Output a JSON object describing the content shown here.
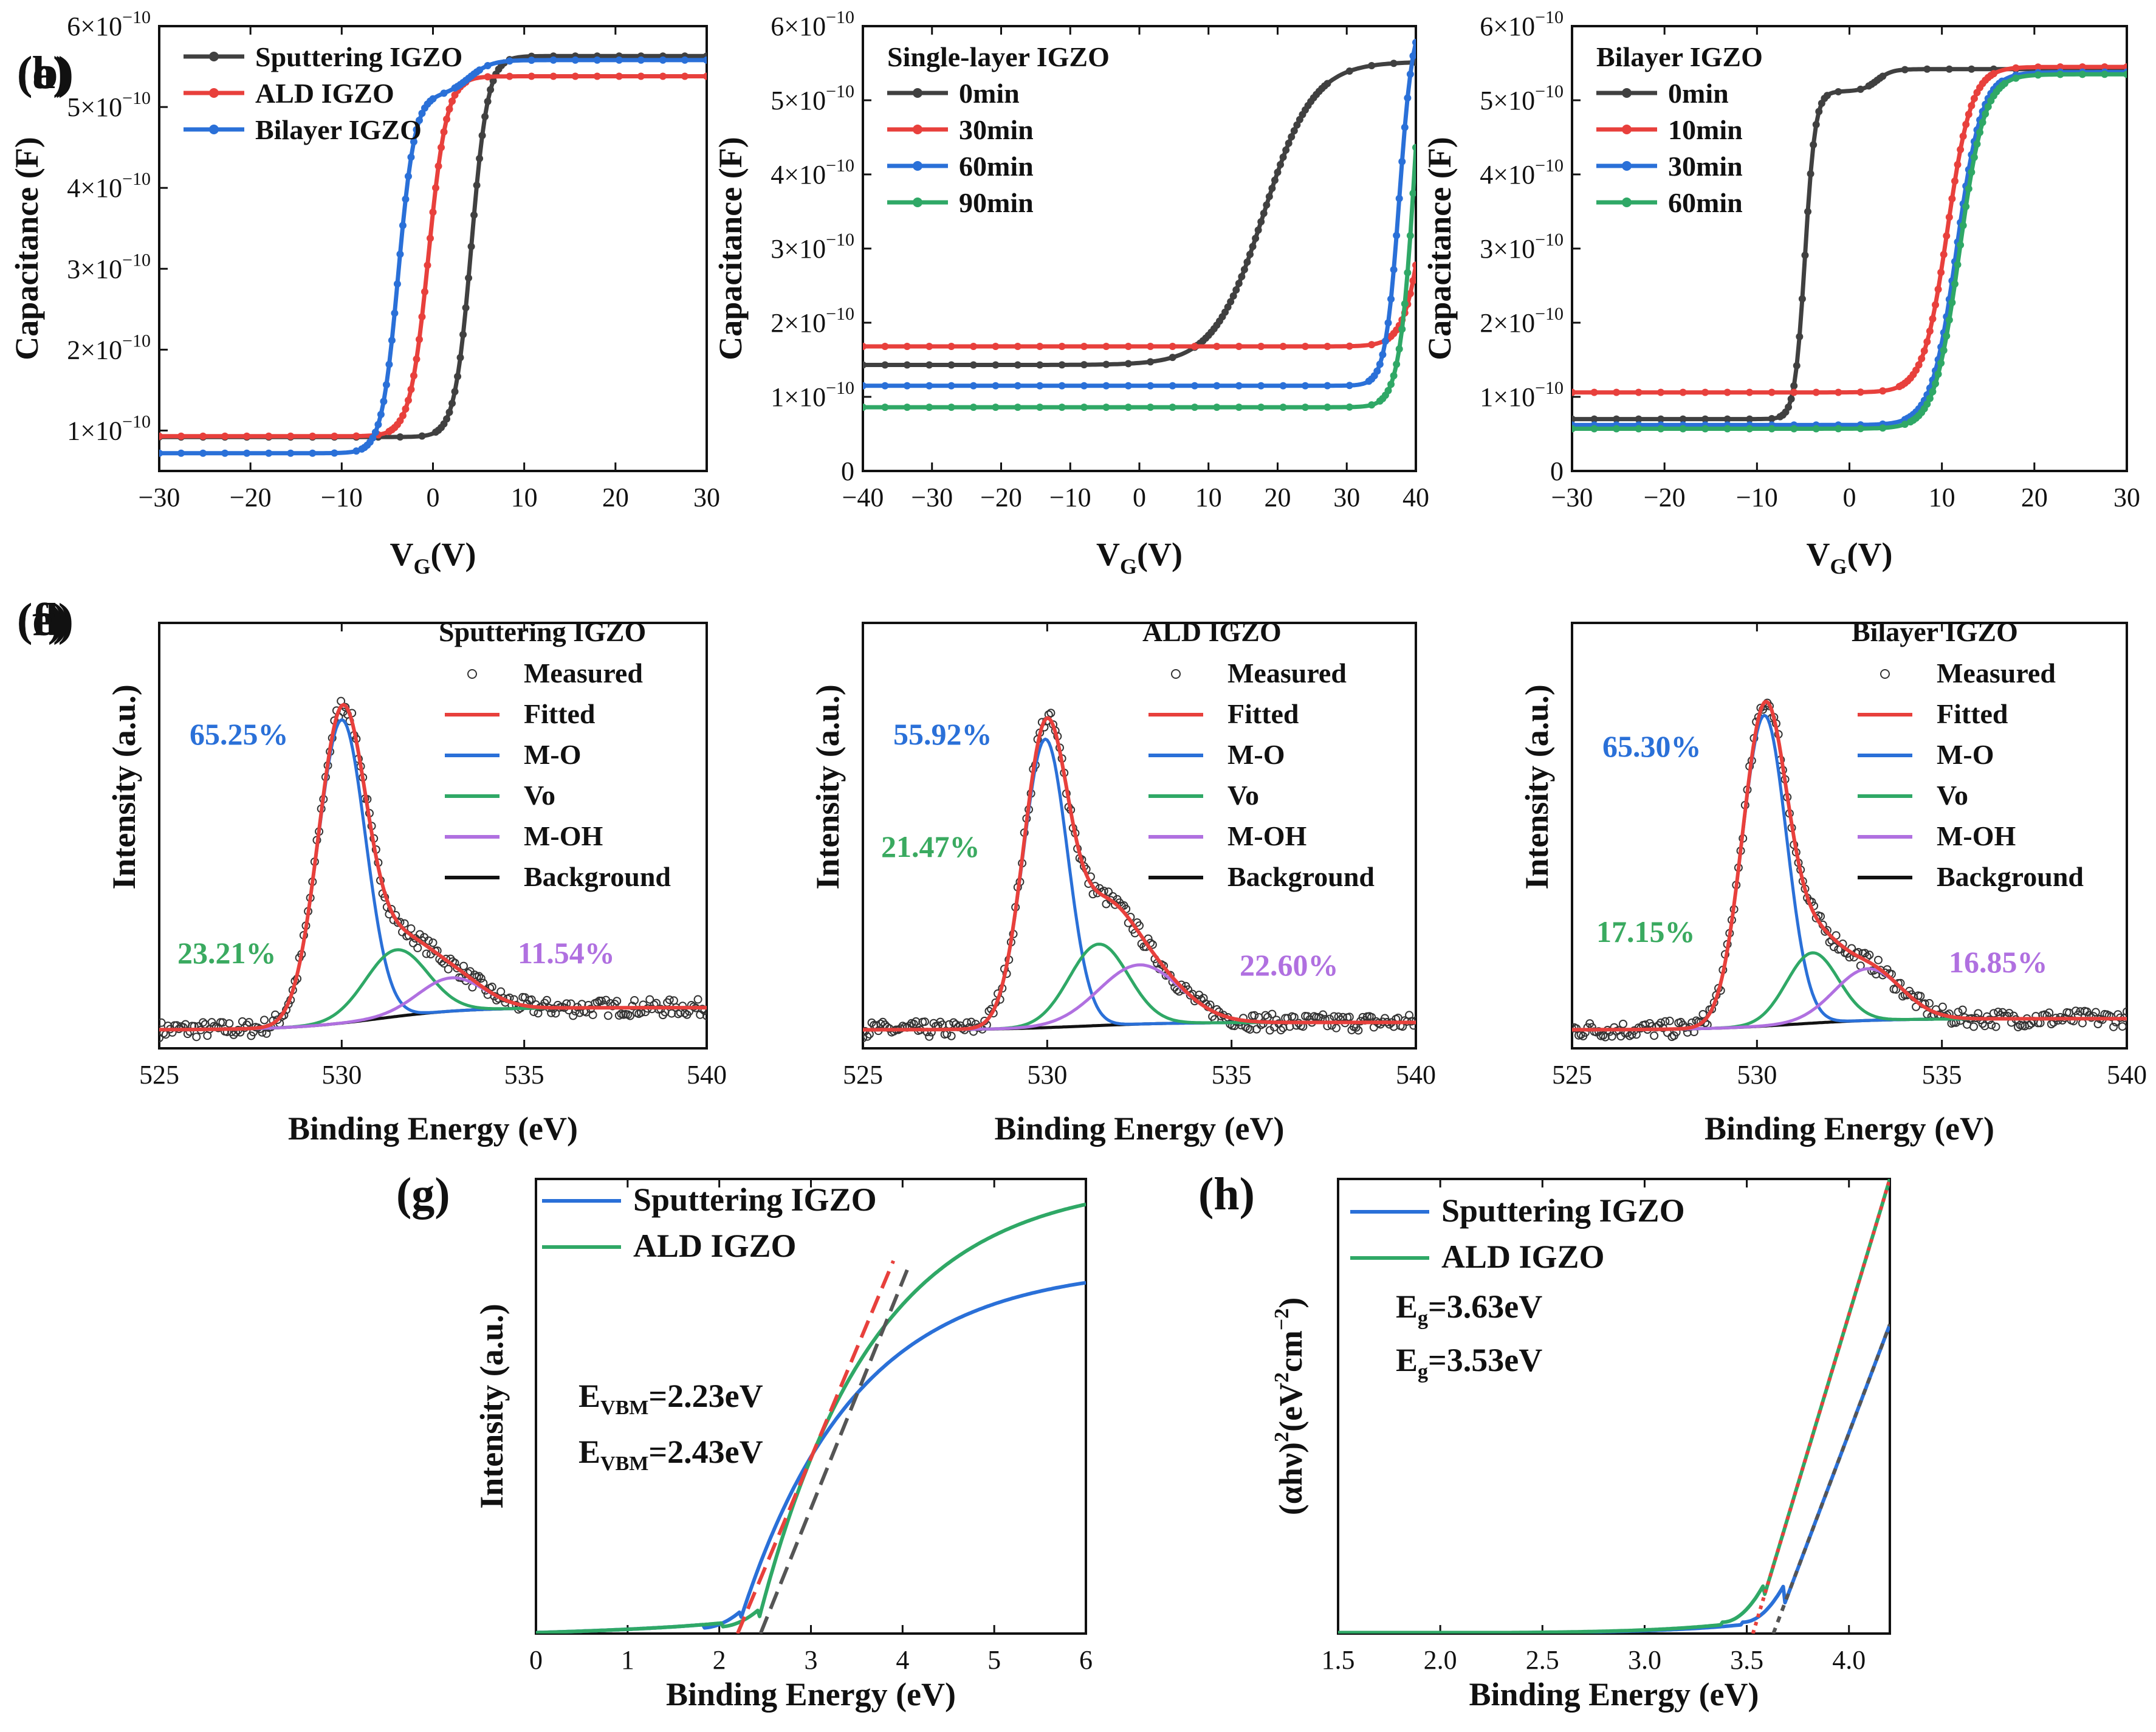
{
  "colors": {
    "black": "#404040",
    "red": "#e8403c",
    "blue": "#2a70d8",
    "green": "#2fa866",
    "purple": "#b070e0",
    "lblue": "#2a70d8",
    "lgreen": "#3aaa60",
    "lpurple": "#b070e0"
  },
  "chart_data": [
    {
      "id": "a",
      "type": "line",
      "panel_label": "(a)",
      "xlabel_main": "V",
      "xlabel_sub": "G",
      "xlabel_tail": "(V)",
      "ylabel": "Capacitance (F)",
      "xlim": [
        -30,
        30
      ],
      "ylim": [
        0.5,
        6
      ],
      "xticks": [
        -30,
        -20,
        -10,
        0,
        10,
        20,
        30
      ],
      "xtick_labels": [
        "−30",
        "−20",
        "−10",
        "0",
        "10",
        "20",
        "30"
      ],
      "yticks": [
        1,
        2,
        3,
        4,
        5,
        6
      ],
      "ytick_labels": [
        "1×10",
        "2×10",
        "3×10",
        "4×10",
        "5×10",
        "6×10"
      ],
      "ytick_exp": "−10",
      "legend": [
        "Sputtering IGZO",
        "ALD IGZO",
        "Bilayer IGZO"
      ],
      "series": [
        {
          "name": "Sputtering IGZO",
          "color": "black",
          "kind": "sig",
          "lo": 0.92,
          "hi": 5.63,
          "x0": 4.2,
          "w": 0.9,
          "marker": true
        },
        {
          "name": "ALD IGZO",
          "color": "red",
          "kind": "sig",
          "lo": 0.93,
          "hi": 5.38,
          "x0": -0.5,
          "w": 1.0,
          "marker": true
        },
        {
          "name": "Bilayer IGZO",
          "color": "blue",
          "kind": "sig2",
          "lo": 0.72,
          "hi": 5.58,
          "x0": -3.8,
          "w": 0.9,
          "mid": 5.15,
          "x1": 4.0,
          "w1": 1.2,
          "marker": true
        }
      ]
    },
    {
      "id": "b",
      "type": "line",
      "panel_label": "(b)",
      "xlabel_main": "V",
      "xlabel_sub": "G",
      "xlabel_tail": "(V)",
      "ylabel": "Capacitance (F)",
      "xlim": [
        -40,
        40
      ],
      "ylim": [
        0,
        6
      ],
      "xticks": [
        -40,
        -30,
        -20,
        -10,
        0,
        10,
        20,
        30,
        40
      ],
      "xtick_labels": [
        "−40",
        "−30",
        "−20",
        "−10",
        "0",
        "10",
        "20",
        "30",
        "40"
      ],
      "yticks": [
        0,
        1,
        2,
        3,
        4,
        5,
        6
      ],
      "ytick_labels": [
        "0",
        "1×10",
        "2×10",
        "3×10",
        "4×10",
        "5×10",
        "6×10"
      ],
      "ytick_exp": "−10",
      "legend_title": "Single-layer IGZO",
      "legend": [
        "0min",
        "30min",
        "60min",
        "90min"
      ],
      "series": [
        {
          "name": "0min",
          "color": "black",
          "kind": "sig",
          "lo": 1.43,
          "hi": 5.52,
          "x0": 18.0,
          "w": 3.6,
          "marker": true
        },
        {
          "name": "30min",
          "color": "red",
          "kind": "sig",
          "lo": 1.68,
          "hi": 8.0,
          "x0": 42.5,
          "w": 1.6,
          "marker": true
        },
        {
          "name": "60min",
          "color": "blue",
          "kind": "sig",
          "lo": 1.15,
          "hi": 6.2,
          "x0": 37.6,
          "w": 1.0,
          "marker": true
        },
        {
          "name": "90min",
          "color": "green",
          "kind": "sig",
          "lo": 0.86,
          "hi": 8.5,
          "x0": 40.2,
          "w": 1.2,
          "marker": true
        }
      ]
    },
    {
      "id": "c",
      "type": "line",
      "panel_label": "(c)",
      "xlabel_main": "V",
      "xlabel_sub": "G",
      "xlabel_tail": "(V)",
      "ylabel": "Capacitance (F)",
      "xlim": [
        -30,
        30
      ],
      "ylim": [
        0,
        6
      ],
      "xticks": [
        -30,
        -20,
        -10,
        0,
        10,
        20,
        30
      ],
      "xtick_labels": [
        "−30",
        "−20",
        "−10",
        "0",
        "10",
        "20",
        "30"
      ],
      "yticks": [
        0,
        1,
        2,
        3,
        4,
        5,
        6
      ],
      "ytick_labels": [
        "0",
        "1×10",
        "2×10",
        "3×10",
        "4×10",
        "5×10",
        "6×10"
      ],
      "ytick_exp": "−10",
      "legend_title": "Bilayer IGZO",
      "legend": [
        "0min",
        "10min",
        "30min",
        "60min"
      ],
      "series": [
        {
          "name": "0min",
          "color": "black",
          "kind": "sig2",
          "lo": 0.7,
          "hi": 5.42,
          "x0": -4.8,
          "w": 0.55,
          "mid": 5.12,
          "x1": 3.0,
          "w1": 0.8,
          "marker": true
        },
        {
          "name": "10min",
          "color": "red",
          "kind": "sig",
          "lo": 1.06,
          "hi": 5.45,
          "x0": 10.6,
          "w": 1.3,
          "marker": true
        },
        {
          "name": "30min",
          "color": "blue",
          "kind": "sig",
          "lo": 0.62,
          "hi": 5.38,
          "x0": 11.6,
          "w": 1.35,
          "marker": true
        },
        {
          "name": "60min",
          "color": "green",
          "kind": "sig",
          "lo": 0.57,
          "hi": 5.35,
          "x0": 11.9,
          "w": 1.35,
          "marker": true
        }
      ]
    },
    {
      "id": "d",
      "type": "line",
      "panel_label": "(d)",
      "xlabel": "Binding Energy (eV)",
      "ylabel": "Intensity (a.u.)",
      "xlim": [
        525,
        540
      ],
      "ylim": [
        -0.05,
        1.1
      ],
      "xticks": [
        525,
        530,
        535,
        540
      ],
      "xtick_labels": [
        "525",
        "530",
        "535",
        "540"
      ],
      "legend_title": "Sputtering IGZO",
      "legend": [
        "Measured",
        "Fitted",
        "M-O",
        "Vo",
        "M-OH",
        "Background"
      ],
      "peaks": [
        {
          "name": "M-O",
          "center": 530.0,
          "sigma": 0.65,
          "amp": 0.82
        },
        {
          "name": "Vo",
          "center": 531.5,
          "sigma": 0.85,
          "amp": 0.18
        },
        {
          "name": "M-OH",
          "center": 533.0,
          "sigma": 0.9,
          "amp": 0.09
        }
      ],
      "bg": [
        0.0,
        0.06
      ],
      "annotations": [
        {
          "text": "65.25%",
          "color": "lblue"
        },
        {
          "text": "23.21%",
          "color": "lgreen"
        },
        {
          "text": "11.54%",
          "color": "lpurple"
        }
      ]
    },
    {
      "id": "e",
      "type": "line",
      "panel_label": "(e)",
      "xlabel": "Binding Energy (eV)",
      "ylabel": "Intensity (a.u.)",
      "xlim": [
        525,
        540
      ],
      "ylim": [
        -0.05,
        1.1
      ],
      "xticks": [
        525,
        530,
        535,
        540
      ],
      "xtick_labels": [
        "525",
        "530",
        "535",
        "540"
      ],
      "legend_title": "ALD IGZO",
      "legend": [
        "Measured",
        "Fitted",
        "M-O",
        "Vo",
        "M-OH",
        "Background"
      ],
      "peaks": [
        {
          "name": "M-O",
          "center": 529.95,
          "sigma": 0.6,
          "amp": 0.78
        },
        {
          "name": "Vo",
          "center": 531.4,
          "sigma": 0.8,
          "amp": 0.22
        },
        {
          "name": "M-OH",
          "center": 532.5,
          "sigma": 1.1,
          "amp": 0.16
        }
      ],
      "bg": [
        0.0,
        0.02
      ],
      "annotations": [
        {
          "text": "55.92%",
          "color": "lblue"
        },
        {
          "text": "21.47%",
          "color": "lgreen"
        },
        {
          "text": "22.60%",
          "color": "lpurple"
        }
      ]
    },
    {
      "id": "f",
      "type": "line",
      "panel_label": "(f)",
      "xlabel": "Binding Energy (eV)",
      "ylabel": "Intensity (a.u.)",
      "xlim": [
        525,
        540
      ],
      "ylim": [
        -0.05,
        1.1
      ],
      "xticks": [
        525,
        530,
        535,
        540
      ],
      "xtick_labels": [
        "525",
        "530",
        "535",
        "540"
      ],
      "legend_title": "Bilayer IGZO",
      "legend": [
        "Measured",
        "Fitted",
        "M-O",
        "Vo",
        "M-OH",
        "Background"
      ],
      "peaks": [
        {
          "name": "M-O",
          "center": 530.2,
          "sigma": 0.6,
          "amp": 0.84
        },
        {
          "name": "Vo",
          "center": 531.5,
          "sigma": 0.7,
          "amp": 0.19
        },
        {
          "name": "M-OH",
          "center": 533.0,
          "sigma": 0.9,
          "amp": 0.14
        }
      ],
      "bg": [
        0.0,
        0.03
      ],
      "annotations": [
        {
          "text": "65.30%",
          "color": "lblue"
        },
        {
          "text": "17.15%",
          "color": "lgreen"
        },
        {
          "text": "16.85%",
          "color": "lpurple"
        }
      ]
    },
    {
      "id": "g",
      "type": "line",
      "panel_label": "(g)",
      "xlabel": "Binding Energy (eV)",
      "ylabel": "Intensity (a.u.)",
      "xlim": [
        0,
        6
      ],
      "ylim": [
        0,
        1.0
      ],
      "xticks": [
        0,
        1,
        2,
        3,
        4,
        5,
        6
      ],
      "xtick_labels": [
        "0",
        "1",
        "2",
        "3",
        "4",
        "5",
        "6"
      ],
      "legend": [
        "Sputtering IGZO",
        "ALD IGZO"
      ],
      "evbm": [
        {
          "value": "2.23eV",
          "color": "lblue"
        },
        {
          "value": "2.43eV",
          "color": "lgreen"
        }
      ],
      "tangents": [
        {
          "x": [
            2.2,
            3.9
          ],
          "y": [
            0.0,
            0.82
          ],
          "color": "#e8403c"
        },
        {
          "x": [
            2.45,
            4.05
          ],
          "y": [
            0.0,
            0.8
          ],
          "color": "#555555"
        }
      ],
      "series": [
        {
          "name": "Sputtering IGZO",
          "color": "blue",
          "kind": "vbm",
          "onset": 2.23,
          "plateau": 0.81
        },
        {
          "name": "ALD IGZO",
          "color": "green",
          "kind": "vbm",
          "onset": 2.43,
          "plateau": 1.0
        }
      ]
    },
    {
      "id": "h",
      "type": "line",
      "panel_label": "(h)",
      "xlabel": "Binding Energy (eV)",
      "ylabel_parts": [
        "(αhν)",
        "2",
        "(eV",
        "2",
        "cm",
        "−2",
        ")"
      ],
      "xlim": [
        1.5,
        4.2
      ],
      "ylim": [
        0,
        1.0
      ],
      "xticks": [
        1.5,
        2.0,
        2.5,
        3.0,
        3.5,
        4.0
      ],
      "xtick_labels": [
        "1.5",
        "2.0",
        "2.5",
        "3.0",
        "3.5",
        "4.0"
      ],
      "legend": [
        "Sputtering IGZO",
        "ALD IGZO"
      ],
      "eg": [
        {
          "value": "=3.63eV",
          "color": "lblue"
        },
        {
          "value": "=3.53eV",
          "color": "lgreen"
        }
      ],
      "tangents": [
        {
          "x": [
            3.53,
            4.2
          ],
          "y": [
            0.0,
            1.0
          ],
          "color": "#e8403c",
          "dash": "6,8"
        },
        {
          "x": [
            3.63,
            4.2
          ],
          "y": [
            0.0,
            0.68
          ],
          "color": "#555555",
          "dash": "10,10"
        }
      ],
      "series": [
        {
          "name": "Sputtering IGZO",
          "color": "blue",
          "kind": "tauc",
          "eg": 3.63,
          "top": 0.68
        },
        {
          "name": "ALD IGZO",
          "color": "green",
          "kind": "tauc",
          "eg": 3.53,
          "top": 1.0
        }
      ]
    }
  ]
}
